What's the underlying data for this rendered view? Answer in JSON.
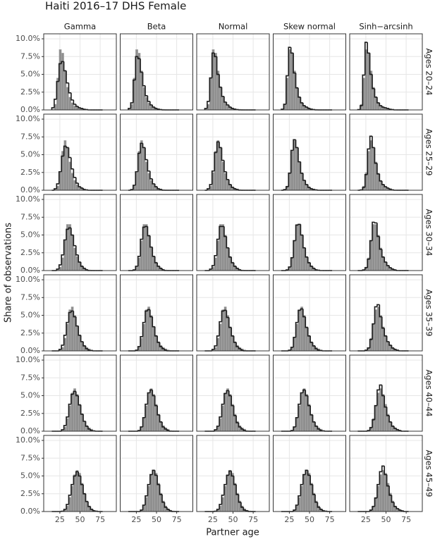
{
  "chart_data": {
    "type": "facet_histogram",
    "title": "Haiti 2016–17 DHS Female",
    "x_label": "Partner age",
    "y_label": "Share of observations",
    "columns": [
      "Gamma",
      "Beta",
      "Normal",
      "Skew normal",
      "Sinh−arcsinh"
    ],
    "bins": [
      15,
      18,
      21,
      24,
      27,
      30,
      33,
      36,
      39,
      42,
      45,
      48,
      51,
      54,
      57,
      60,
      63,
      66,
      69,
      72,
      75,
      78
    ],
    "xlim": [
      5,
      95
    ],
    "xticks": [
      25,
      50,
      75
    ],
    "ylim": [
      0,
      10.7
    ],
    "yticks": [
      {
        "value": 0,
        "label": "0.0%"
      },
      {
        "value": 2.5,
        "label": "2.5%"
      },
      {
        "value": 5,
        "label": "5.0%"
      },
      {
        "value": 7.5,
        "label": "7.5%"
      },
      {
        "value": 10,
        "label": "10.0%"
      }
    ],
    "grid": true,
    "observed_color": "#8f8f8f",
    "fitted_color": "#1a1a1a",
    "rows": [
      {
        "label": "Ages 20–24",
        "observed": [
          0.1,
          0.8,
          4.5,
          8.5,
          8.0,
          5.5,
          3.2,
          1.8,
          1.0,
          0.6,
          0.4,
          0.3,
          0.2,
          0.1,
          0.1,
          0.05,
          0,
          0,
          0,
          0,
          0
        ],
        "fitted": [
          [
            0.3,
            1.5,
            4.0,
            6.5,
            6.8,
            5.5,
            3.8,
            2.4,
            1.4,
            0.8,
            0.5,
            0.3,
            0.2,
            0.1,
            0.05,
            0,
            0,
            0,
            0,
            0,
            0
          ],
          [
            0.2,
            1.0,
            4.2,
            7.5,
            7.2,
            5.3,
            3.4,
            2.0,
            1.2,
            0.7,
            0.4,
            0.2,
            0.1,
            0.05,
            0,
            0,
            0,
            0,
            0,
            0,
            0
          ],
          [
            0.2,
            1.2,
            4.5,
            8.0,
            7.5,
            5.0,
            3.2,
            1.9,
            1.1,
            0.7,
            0.4,
            0.2,
            0.1,
            0.05,
            0,
            0,
            0,
            0,
            0,
            0,
            0
          ],
          [
            0.1,
            0.8,
            4.8,
            8.8,
            8.0,
            5.2,
            3.1,
            1.8,
            1.0,
            0.6,
            0.4,
            0.2,
            0.1,
            0.05,
            0,
            0,
            0,
            0,
            0,
            0,
            0
          ],
          [
            0.05,
            0.6,
            4.9,
            9.5,
            8.0,
            5.0,
            3.0,
            1.8,
            1.0,
            0.6,
            0.4,
            0.3,
            0.2,
            0.1,
            0.05,
            0,
            0,
            0,
            0,
            0,
            0
          ]
        ]
      },
      {
        "label": "Ages 25–29",
        "observed": [
          0,
          0.1,
          0.6,
          2.5,
          5.5,
          7.0,
          6.0,
          4.0,
          2.4,
          1.4,
          0.8,
          0.5,
          0.3,
          0.2,
          0.1,
          0.05,
          0,
          0,
          0,
          0,
          0
        ],
        "fitted": [
          [
            0,
            0.2,
            0.9,
            2.6,
            4.8,
            6.2,
            6.0,
            4.6,
            3.0,
            1.8,
            1.0,
            0.5,
            0.3,
            0.1,
            0.05,
            0,
            0,
            0,
            0,
            0,
            0
          ],
          [
            0,
            0.1,
            0.7,
            2.6,
            5.2,
            6.6,
            6.0,
            4.3,
            2.7,
            1.6,
            0.9,
            0.5,
            0.2,
            0.1,
            0,
            0,
            0,
            0,
            0,
            0,
            0
          ],
          [
            0,
            0.2,
            0.8,
            2.7,
            5.3,
            6.8,
            6.0,
            4.2,
            2.6,
            1.5,
            0.8,
            0.4,
            0.2,
            0.1,
            0,
            0,
            0,
            0,
            0,
            0,
            0
          ],
          [
            0,
            0.1,
            0.5,
            2.4,
            5.6,
            7.1,
            6.0,
            4.0,
            2.4,
            1.4,
            0.8,
            0.4,
            0.2,
            0.1,
            0.05,
            0,
            0,
            0,
            0,
            0,
            0
          ],
          [
            0,
            0.05,
            0.4,
            2.2,
            5.8,
            7.6,
            6.0,
            3.8,
            2.3,
            1.3,
            0.8,
            0.5,
            0.3,
            0.15,
            0.05,
            0,
            0,
            0,
            0,
            0,
            0
          ]
        ]
      },
      {
        "label": "Ages 30–34",
        "observed": [
          0,
          0,
          0.1,
          0.5,
          1.8,
          4.2,
          6.5,
          6.5,
          5.0,
          3.2,
          2.0,
          1.2,
          0.7,
          0.4,
          0.2,
          0.1,
          0.05,
          0,
          0,
          0,
          0
        ],
        "fitted": [
          [
            0,
            0,
            0.2,
            0.8,
            2.2,
            4.3,
            5.8,
            6.0,
            5.0,
            3.5,
            2.2,
            1.2,
            0.6,
            0.3,
            0.1,
            0,
            0,
            0,
            0,
            0,
            0
          ],
          [
            0,
            0,
            0.1,
            0.6,
            2.0,
            4.4,
            6.1,
            6.2,
            4.9,
            3.3,
            2.0,
            1.1,
            0.6,
            0.3,
            0.1,
            0,
            0,
            0,
            0,
            0,
            0
          ],
          [
            0,
            0,
            0.2,
            0.7,
            2.1,
            4.4,
            6.2,
            6.2,
            4.8,
            3.2,
            1.9,
            1.1,
            0.6,
            0.3,
            0.1,
            0,
            0,
            0,
            0,
            0,
            0
          ],
          [
            0,
            0,
            0.1,
            0.5,
            1.8,
            4.2,
            6.4,
            6.5,
            5.0,
            3.2,
            1.9,
            1.1,
            0.6,
            0.3,
            0.1,
            0.05,
            0,
            0,
            0,
            0,
            0
          ],
          [
            0,
            0,
            0.1,
            0.4,
            1.6,
            4.2,
            6.8,
            6.7,
            4.8,
            3.0,
            1.9,
            1.2,
            0.7,
            0.4,
            0.2,
            0.1,
            0,
            0,
            0,
            0,
            0
          ]
        ]
      },
      {
        "label": "Ages 35–39",
        "observed": [
          0,
          0,
          0,
          0.1,
          0.5,
          1.8,
          3.8,
          5.8,
          6.2,
          5.0,
          3.4,
          2.2,
          1.3,
          0.8,
          0.5,
          0.3,
          0.15,
          0.05,
          0,
          0,
          0
        ],
        "fitted": [
          [
            0,
            0,
            0,
            0.2,
            0.8,
            2.2,
            4.0,
            5.4,
            5.6,
            4.8,
            3.5,
            2.2,
            1.3,
            0.7,
            0.3,
            0.1,
            0.05,
            0,
            0,
            0,
            0
          ],
          [
            0,
            0,
            0,
            0.1,
            0.6,
            2.0,
            4.0,
            5.6,
            5.8,
            4.8,
            3.4,
            2.1,
            1.2,
            0.6,
            0.3,
            0.1,
            0,
            0,
            0,
            0,
            0
          ],
          [
            0,
            0,
            0,
            0.2,
            0.7,
            2.1,
            4.1,
            5.6,
            5.7,
            4.7,
            3.3,
            2.1,
            1.2,
            0.6,
            0.3,
            0.1,
            0,
            0,
            0,
            0,
            0
          ],
          [
            0,
            0,
            0,
            0.1,
            0.5,
            1.9,
            4.0,
            5.7,
            5.9,
            4.8,
            3.3,
            2.1,
            1.2,
            0.7,
            0.3,
            0.1,
            0.05,
            0,
            0,
            0,
            0
          ],
          [
            0,
            0,
            0,
            0.1,
            0.4,
            1.6,
            3.8,
            6.2,
            6.5,
            4.8,
            3.2,
            2.1,
            1.3,
            0.8,
            0.4,
            0.2,
            0.1,
            0,
            0,
            0,
            0
          ]
        ]
      },
      {
        "label": "Ages 40–44",
        "observed": [
          0,
          0,
          0,
          0,
          0.1,
          0.6,
          1.8,
          3.6,
          5.4,
          6.0,
          5.2,
          3.8,
          2.4,
          1.4,
          0.8,
          0.5,
          0.3,
          0.1,
          0.05,
          0,
          0
        ],
        "fitted": [
          [
            0,
            0,
            0,
            0,
            0.2,
            0.8,
            2.0,
            3.8,
            5.2,
            5.6,
            5.0,
            3.7,
            2.4,
            1.4,
            0.7,
            0.3,
            0.1,
            0.05,
            0,
            0,
            0
          ],
          [
            0,
            0,
            0,
            0,
            0.1,
            0.6,
            1.9,
            3.8,
            5.4,
            5.8,
            5.0,
            3.6,
            2.3,
            1.3,
            0.6,
            0.3,
            0.1,
            0,
            0,
            0,
            0
          ],
          [
            0,
            0,
            0,
            0,
            0.2,
            0.7,
            2.0,
            3.8,
            5.3,
            5.7,
            5.0,
            3.6,
            2.2,
            1.2,
            0.6,
            0.3,
            0.1,
            0,
            0,
            0,
            0
          ],
          [
            0,
            0,
            0,
            0,
            0.1,
            0.6,
            1.9,
            3.8,
            5.4,
            5.8,
            5.0,
            3.6,
            2.3,
            1.3,
            0.7,
            0.3,
            0.1,
            0.05,
            0,
            0,
            0
          ],
          [
            0,
            0,
            0,
            0,
            0.1,
            0.5,
            1.6,
            3.6,
            5.8,
            6.5,
            5.0,
            3.4,
            2.2,
            1.3,
            0.7,
            0.4,
            0.2,
            0.1,
            0,
            0,
            0
          ]
        ]
      },
      {
        "label": "Ages 45–49",
        "observed": [
          0,
          0,
          0,
          0,
          0,
          0.2,
          0.8,
          2.0,
          3.6,
          5.2,
          5.8,
          5.4,
          4.0,
          2.6,
          1.5,
          0.8,
          0.4,
          0.2,
          0.1,
          0.05,
          0
        ],
        "fitted": [
          [
            0,
            0,
            0,
            0,
            0.05,
            0.3,
            1.0,
            2.3,
            3.8,
            5.0,
            5.6,
            5.0,
            3.8,
            2.5,
            1.4,
            0.7,
            0.3,
            0.1,
            0.05,
            0,
            0
          ],
          [
            0,
            0,
            0,
            0,
            0,
            0.2,
            0.9,
            2.2,
            3.8,
            5.2,
            5.8,
            5.1,
            3.8,
            2.4,
            1.3,
            0.6,
            0.3,
            0.1,
            0,
            0,
            0
          ],
          [
            0,
            0,
            0,
            0,
            0.05,
            0.3,
            1.0,
            2.3,
            3.8,
            5.1,
            5.7,
            5.0,
            3.8,
            2.4,
            1.3,
            0.6,
            0.2,
            0.1,
            0,
            0,
            0
          ],
          [
            0,
            0,
            0,
            0,
            0,
            0.2,
            0.9,
            2.2,
            3.8,
            5.2,
            5.8,
            5.1,
            3.8,
            2.4,
            1.3,
            0.6,
            0.3,
            0.1,
            0.05,
            0,
            0
          ],
          [
            0,
            0,
            0,
            0,
            0,
            0.2,
            0.7,
            1.9,
            3.8,
            5.6,
            6.4,
            5.2,
            3.6,
            2.3,
            1.3,
            0.7,
            0.4,
            0.2,
            0.1,
            0,
            0
          ]
        ]
      }
    ]
  }
}
